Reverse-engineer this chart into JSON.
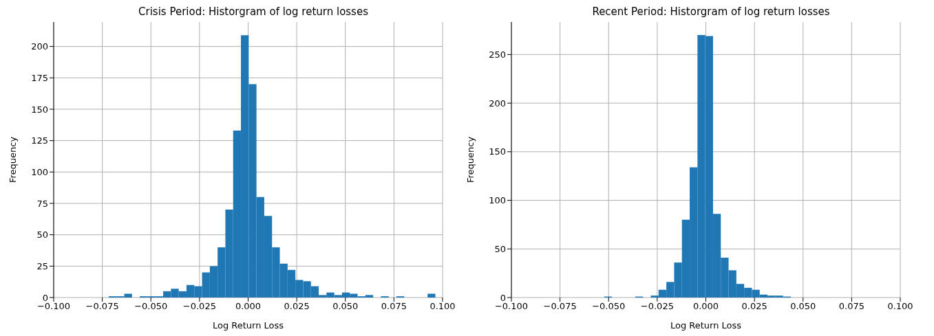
{
  "chart_data": [
    {
      "type": "histogram",
      "title": "Crisis Period: Historgram of log return losses",
      "xlabel": "Log Return Loss",
      "ylabel": "Frequency",
      "color": "#1f77b4",
      "bins": [
        -0.0717,
        -0.0677,
        -0.0637,
        -0.0597,
        -0.0557,
        -0.0517,
        -0.0477,
        -0.0437,
        -0.0397,
        -0.0357,
        -0.0317,
        -0.0277,
        -0.0237,
        -0.0197,
        -0.0157,
        -0.0117,
        -0.0077,
        -0.0037,
        0.0003,
        0.0043,
        0.0083,
        0.0123,
        0.0163,
        0.0203,
        0.0243,
        0.0283,
        0.0323,
        0.0363,
        0.0403,
        0.0443,
        0.0483,
        0.0523,
        0.0563,
        0.0603,
        0.0643,
        0.0683,
        0.0723,
        0.0763,
        0.0803,
        0.0843,
        0.0883,
        0.0923,
        0.0963
      ],
      "values": [
        1,
        1,
        3,
        0,
        1,
        1,
        1,
        5,
        7,
        5,
        10,
        9,
        20,
        25,
        40,
        70,
        133,
        209,
        170,
        80,
        65,
        40,
        27,
        22,
        14,
        13,
        9,
        2,
        4,
        2,
        4,
        3,
        1,
        2,
        0,
        1,
        0,
        1,
        0,
        0,
        0,
        3
      ],
      "xlim": [
        -0.1,
        0.1
      ],
      "xticks": [
        {
          "value": -0.1,
          "label": "−0.100"
        },
        {
          "value": -0.075,
          "label": "−0.075"
        },
        {
          "value": -0.05,
          "label": "−0.050"
        },
        {
          "value": -0.025,
          "label": "−0.025"
        },
        {
          "value": 0,
          "label": "0.000"
        },
        {
          "value": 0.025,
          "label": "0.025"
        },
        {
          "value": 0.05,
          "label": "0.050"
        },
        {
          "value": 0.075,
          "label": "0.075"
        },
        {
          "value": 0.1,
          "label": "0.100"
        }
      ],
      "ylim": [
        0,
        219.5
      ],
      "yticks": [
        0,
        25,
        50,
        75,
        100,
        125,
        150,
        175,
        200
      ],
      "grid": true
    },
    {
      "type": "histogram",
      "title": "Recent Period: Historgram of log return losses",
      "xlabel": "Log Return Loss",
      "ylabel": "Frequency",
      "color": "#1f77b4",
      "bins": [
        -0.0523,
        -0.0483,
        -0.0443,
        -0.0403,
        -0.0363,
        -0.0323,
        -0.0283,
        -0.0243,
        -0.0203,
        -0.0163,
        -0.0123,
        -0.0083,
        -0.0043,
        -0.0003,
        0.0037,
        0.0077,
        0.0117,
        0.0157,
        0.0197,
        0.0237,
        0.0277,
        0.0317,
        0.0357,
        0.0397,
        0.0437
      ],
      "values": [
        1,
        0,
        0,
        0,
        1,
        0,
        2,
        8,
        16,
        36,
        80,
        134,
        270,
        269,
        86,
        41,
        28,
        14,
        10,
        8,
        3,
        2,
        2,
        1
      ],
      "xlim": [
        -0.1,
        0.1
      ],
      "xticks": [
        {
          "value": -0.1,
          "label": "−0.100"
        },
        {
          "value": -0.075,
          "label": "−0.075"
        },
        {
          "value": -0.05,
          "label": "−0.050"
        },
        {
          "value": -0.025,
          "label": "−0.025"
        },
        {
          "value": 0,
          "label": "0.000"
        },
        {
          "value": 0.025,
          "label": "0.025"
        },
        {
          "value": 0.05,
          "label": "0.050"
        },
        {
          "value": 0.075,
          "label": "0.075"
        },
        {
          "value": 0.1,
          "label": "0.100"
        }
      ],
      "ylim": [
        0,
        283.5
      ],
      "yticks": [
        0,
        50,
        100,
        150,
        200,
        250
      ],
      "grid": true
    }
  ]
}
